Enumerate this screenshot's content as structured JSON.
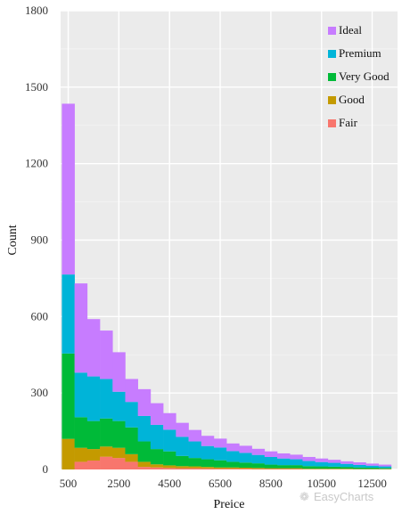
{
  "chart_data": {
    "type": "bar",
    "stacked": true,
    "xlabel": "Preice",
    "ylabel": "Count",
    "ylim": [
      0,
      1800
    ],
    "yticks": [
      0,
      300,
      600,
      900,
      1200,
      1500,
      1800
    ],
    "xticks": [
      500,
      2500,
      4500,
      6500,
      8500,
      10500,
      12500
    ],
    "xlim": [
      200,
      13500
    ],
    "bin_width": 500,
    "grid": true,
    "legend_position": "top-right",
    "series_order": [
      "Fair",
      "Good",
      "Very Good",
      "Premium",
      "Ideal"
    ],
    "series": [
      {
        "name": "Ideal",
        "color": "#c77cff",
        "values": [
          670,
          350,
          225,
          190,
          155,
          90,
          105,
          85,
          65,
          55,
          45,
          40,
          35,
          30,
          28,
          24,
          22,
          20,
          18,
          16,
          14,
          12,
          10,
          10,
          8,
          7
        ]
      },
      {
        "name": "Premium",
        "color": "#00b4d8",
        "values": [
          310,
          175,
          175,
          155,
          115,
          100,
          100,
          95,
          85,
          75,
          65,
          52,
          50,
          42,
          38,
          33,
          30,
          26,
          23,
          20,
          17,
          15,
          12,
          10,
          8,
          6
        ]
      },
      {
        "name": "Very Good",
        "color": "#00ba38",
        "values": [
          335,
          120,
          110,
          110,
          105,
          105,
          80,
          60,
          55,
          40,
          33,
          30,
          28,
          22,
          20,
          18,
          14,
          12,
          12,
          10,
          9,
          8,
          7,
          6,
          5,
          4
        ]
      },
      {
        "name": "Good",
        "color": "#c49a00",
        "values": [
          120,
          55,
          45,
          40,
          40,
          30,
          20,
          12,
          10,
          8,
          7,
          6,
          5,
          5,
          4,
          4,
          3,
          3,
          3,
          2,
          2,
          2,
          2,
          1,
          1,
          1
        ]
      },
      {
        "name": "Fair",
        "color": "#f8766d",
        "values": [
          0,
          30,
          35,
          50,
          45,
          30,
          10,
          8,
          6,
          5,
          5,
          4,
          3,
          3,
          3,
          2,
          2,
          2,
          2,
          1,
          1,
          1,
          1,
          1,
          1,
          1
        ]
      }
    ]
  },
  "watermark": "EasyCharts"
}
